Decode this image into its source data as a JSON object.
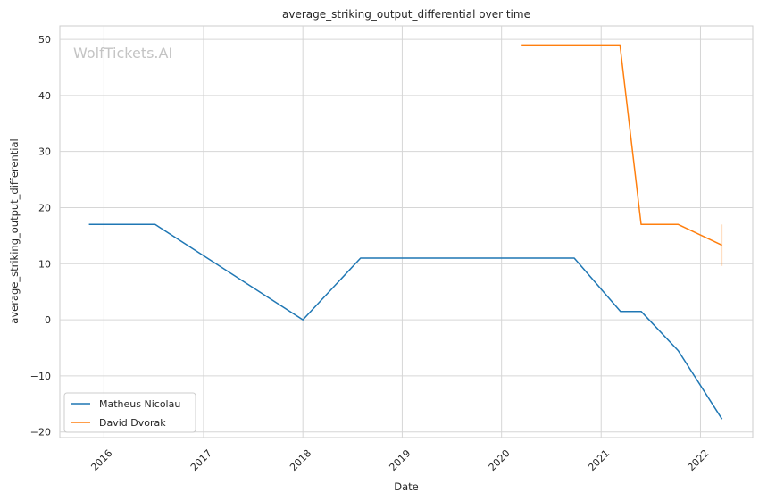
{
  "chart_data": {
    "type": "line",
    "title": "average_striking_output_differential over time",
    "xlabel": "Date",
    "ylabel": "average_striking_output_differential",
    "watermark": "WolfTickets.AI",
    "x_ticks": [
      "2016",
      "2017",
      "2018",
      "2019",
      "2020",
      "2021",
      "2022"
    ],
    "y_ticks": [
      50,
      40,
      30,
      20,
      10,
      0,
      -10,
      -20
    ],
    "ylim": [
      -21,
      52.4
    ],
    "xlim": [
      "2015-07-23",
      "2022-07-12"
    ],
    "grid": true,
    "legend_position": "lower-left",
    "series": [
      {
        "name": "Matheus Nicolau",
        "color": "#1f77b4",
        "points": [
          {
            "x": "2015-11-07",
            "y": 17
          },
          {
            "x": "2016-07-07",
            "y": 17
          },
          {
            "x": "2018-01-01",
            "y": 0
          },
          {
            "x": "2018-08-01",
            "y": 11
          },
          {
            "x": "2020-09-24",
            "y": 11
          },
          {
            "x": "2021-03-13",
            "y": 1.5
          },
          {
            "x": "2021-05-28",
            "y": 1.5
          },
          {
            "x": "2021-10-11",
            "y": -5.5
          },
          {
            "x": "2022-03-21",
            "y": -17.7
          }
        ]
      },
      {
        "name": "David Dvorak",
        "color": "#ff7f0e",
        "points": [
          {
            "x": "2020-03-15",
            "y": 49
          },
          {
            "x": "2021-03-11",
            "y": 49
          },
          {
            "x": "2021-05-28",
            "y": 17
          },
          {
            "x": "2021-10-11",
            "y": 17
          },
          {
            "x": "2022-03-21",
            "y": 13.3
          }
        ],
        "error_bar": {
          "x": "2022-03-21",
          "low": 9.6,
          "high": 17
        }
      }
    ]
  }
}
